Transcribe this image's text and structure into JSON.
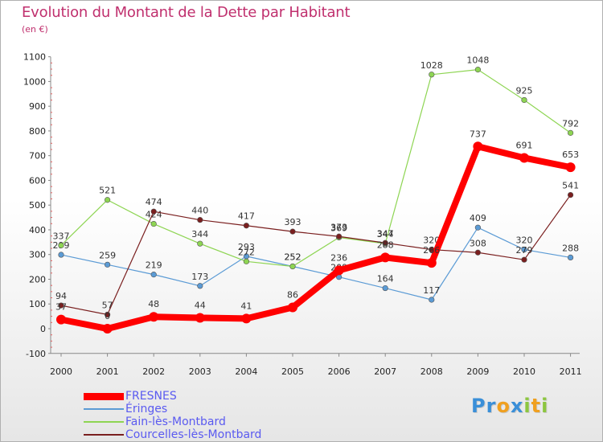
{
  "title": "Evolution du Montant de la Dette par Habitant",
  "subtitle": "(en €)",
  "logo": {
    "text": "Proxiti",
    "letters": [
      {
        "ch": "P",
        "color": "#3a8fd8"
      },
      {
        "ch": "r",
        "color": "#3a8fd8"
      },
      {
        "ch": "o",
        "color": "#f0a020"
      },
      {
        "ch": "x",
        "color": "#3a8fd8"
      },
      {
        "ch": "i",
        "color": "#8cc63f"
      },
      {
        "ch": "t",
        "color": "#f0a020"
      },
      {
        "ch": "i",
        "color": "#8cc63f"
      }
    ]
  },
  "chart_data": {
    "type": "line",
    "title": "Evolution du Montant de la Dette par Habitant",
    "subtitle": "(en €)",
    "x": [
      "2000",
      "2001",
      "2002",
      "2003",
      "2004",
      "2005",
      "2006",
      "2007",
      "2008",
      "2009",
      "2010",
      "2011"
    ],
    "ylim": [
      -100,
      1100
    ],
    "yticks": [
      -100,
      0,
      100,
      200,
      300,
      400,
      500,
      600,
      700,
      800,
      900,
      1000,
      1100
    ],
    "grid": false,
    "legend_position": "bottom-left",
    "series": [
      {
        "name": "FRESNES",
        "color": "#ff0000",
        "width": "thick",
        "values": [
          37,
          0,
          48,
          44,
          41,
          86,
          236,
          288,
          266,
          737,
          691,
          653
        ]
      },
      {
        "name": "Éringes",
        "color": "#5b9bd5",
        "width": "thin",
        "values": [
          299,
          259,
          219,
          173,
          293,
          252,
          209,
          164,
          117,
          409,
          320,
          288
        ]
      },
      {
        "name": "Fain-lès-Montbard",
        "color": "#8ed553",
        "width": "thin",
        "values": [
          337,
          521,
          424,
          344,
          272,
          252,
          369,
          344,
          1028,
          1048,
          925,
          792
        ]
      },
      {
        "name": "Courcelles-lès-Montbard",
        "color": "#7a1f1f",
        "width": "thin",
        "values": [
          94,
          57,
          474,
          440,
          417,
          393,
          373,
          347,
          320,
          308,
          279,
          541
        ]
      }
    ]
  }
}
